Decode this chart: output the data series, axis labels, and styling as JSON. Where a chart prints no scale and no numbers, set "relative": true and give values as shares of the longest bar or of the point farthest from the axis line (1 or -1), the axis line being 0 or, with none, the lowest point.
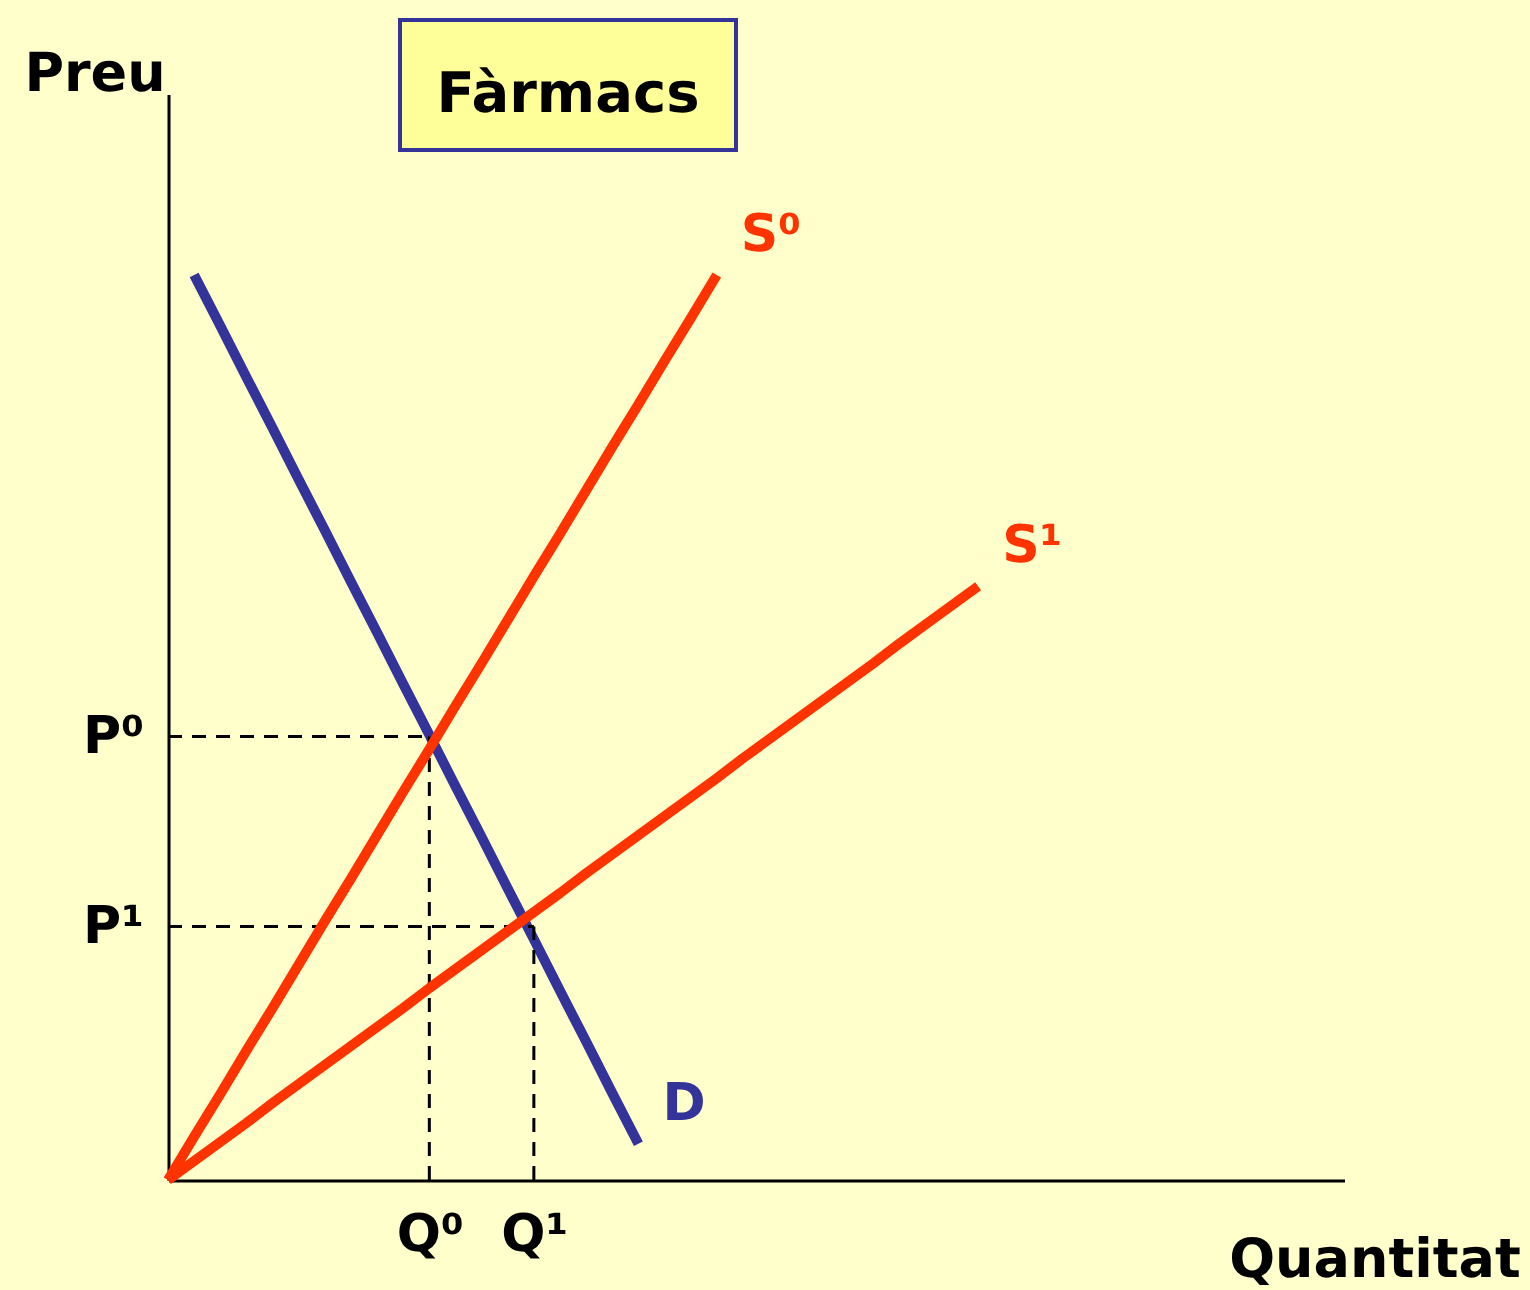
{
  "chart_data": {
    "type": "line",
    "title": "Fàrmacs",
    "xlabel": "Quantitat",
    "ylabel": "Preu",
    "relative": true,
    "grid": false,
    "legend": false,
    "marker": "none",
    "line_style": "solid",
    "categories": [
      null,
      null,
      null,
      null,
      null,
      null,
      null,
      null,
      null,
      null,
      "Q⁰",
      null,
      null,
      null,
      "Q¹",
      null,
      null,
      null,
      null,
      null,
      null,
      null,
      null,
      null,
      null,
      null,
      null,
      null,
      null,
      null,
      null,
      null,
      null,
      null,
      null,
      null,
      null,
      null,
      null,
      null,
      null,
      null,
      null,
      null,
      null,
      null
    ],
    "series": [
      {
        "name": "D",
        "color": "#333399",
        "values": [
          null,
          1.0,
          0.944,
          0.887,
          0.831,
          0.774,
          0.718,
          0.661,
          0.605,
          0.548,
          0.492,
          0.435,
          0.379,
          0.322,
          0.266,
          0.209,
          0.153,
          0.096,
          0.04,
          null,
          null,
          null,
          null,
          null,
          null,
          null,
          null,
          null,
          null,
          null,
          null,
          null,
          null,
          null,
          null,
          null,
          null,
          null,
          null,
          null,
          null,
          null,
          null,
          null,
          null,
          null
        ]
      },
      {
        "name": "S⁰",
        "color": "#ff3300",
        "values": [
          0,
          0.048,
          0.095,
          0.143,
          0.19,
          0.238,
          0.286,
          0.333,
          0.381,
          0.429,
          0.476,
          0.524,
          0.571,
          0.619,
          0.667,
          0.714,
          0.762,
          0.81,
          0.857,
          0.905,
          0.952,
          1.0,
          null,
          null,
          null,
          null,
          null,
          null,
          null,
          null,
          null,
          null,
          null,
          null,
          null,
          null,
          null,
          null,
          null,
          null,
          null,
          null,
          null,
          null,
          null,
          null
        ]
      },
      {
        "name": "S¹",
        "color": "#ff3300",
        "values": [
          0,
          0.021,
          0.042,
          0.063,
          0.085,
          0.106,
          0.127,
          0.148,
          0.169,
          0.19,
          0.212,
          0.233,
          0.254,
          0.275,
          0.296,
          0.317,
          0.339,
          0.36,
          0.381,
          0.402,
          0.423,
          0.444,
          0.466,
          0.487,
          0.508,
          0.529,
          0.55,
          0.571,
          0.593,
          0.614,
          0.635,
          0.656,
          null,
          null,
          null,
          null,
          null,
          null,
          null,
          null,
          null,
          null,
          null,
          null,
          null,
          null
        ]
      }
    ],
    "ref_lines": [
      {
        "axis": "y",
        "value": 0.49,
        "label": "P⁰",
        "color": "#000000",
        "line_style": "dashed"
      },
      {
        "axis": "y",
        "value": 0.28,
        "label": "P¹",
        "color": "#000000",
        "line_style": "dashed"
      },
      {
        "axis": "x",
        "value": "Q⁰",
        "color": "#000000",
        "line_style": "dashed"
      },
      {
        "axis": "x",
        "value": "Q¹",
        "color": "#000000",
        "line_style": "dashed"
      }
    ]
  }
}
